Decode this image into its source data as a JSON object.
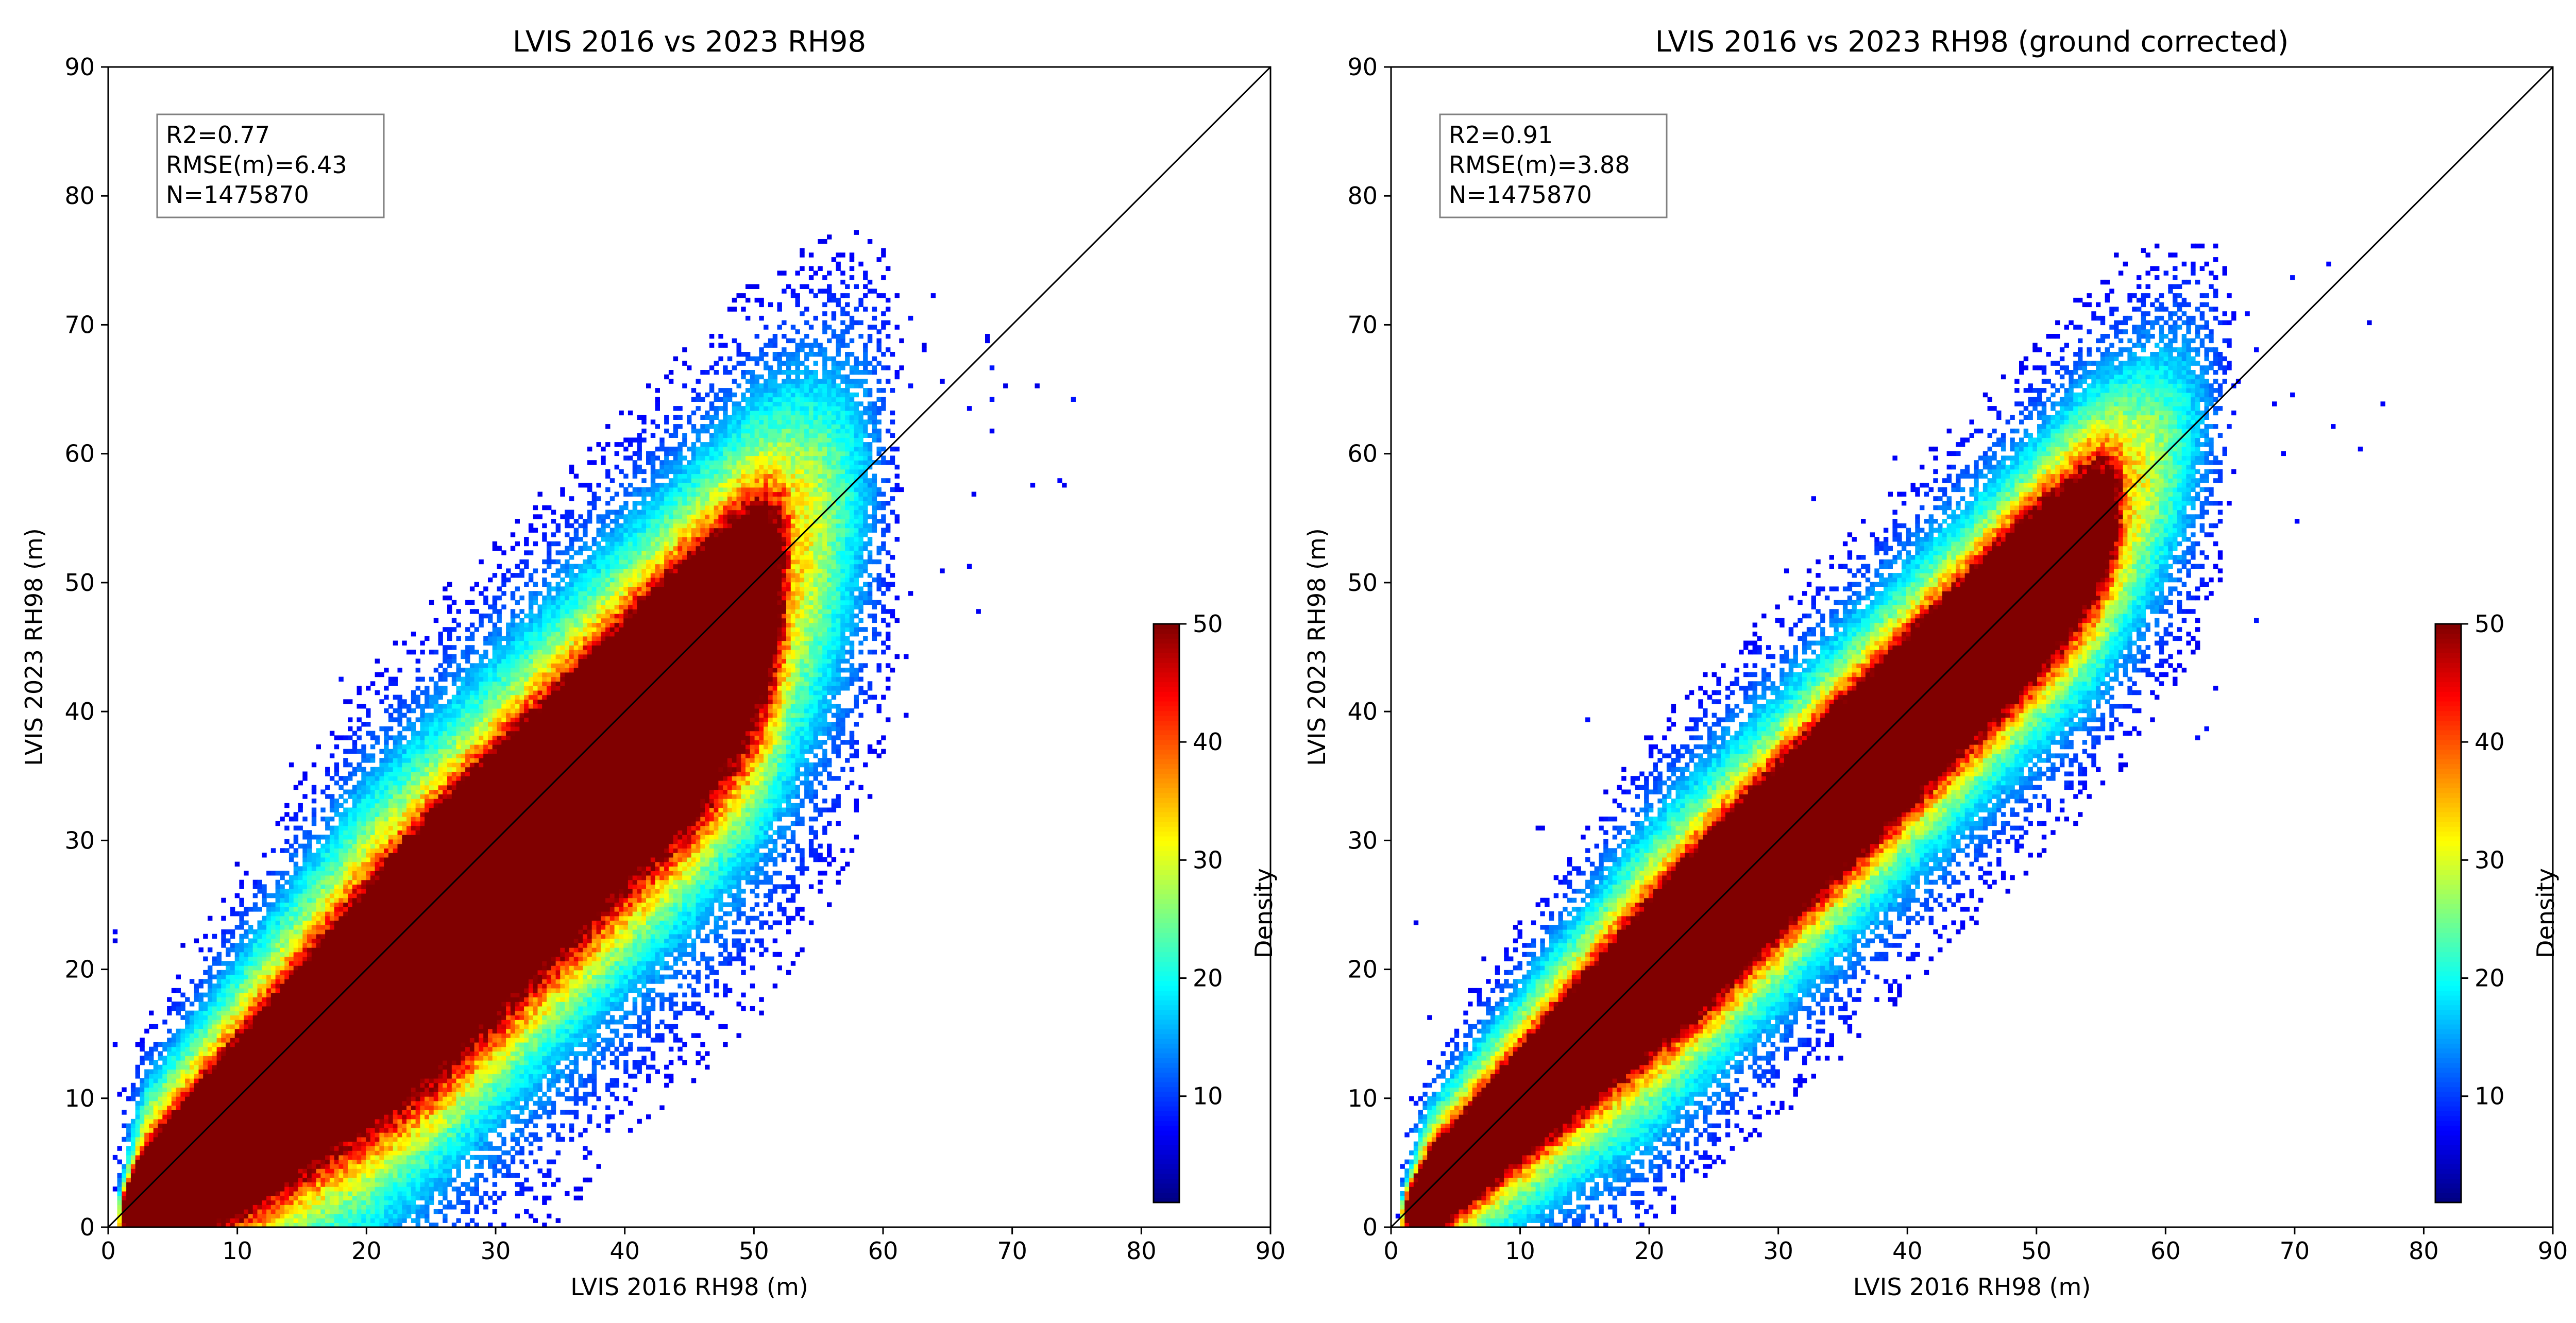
{
  "chart_data": [
    {
      "type": "heatmap",
      "title": "LVIS 2016 vs 2023 RH98",
      "xlabel": "LVIS 2016 RH98 (m)",
      "ylabel": "LVIS 2023 RH98 (m)",
      "xlim": [
        0,
        90
      ],
      "ylim": [
        0,
        90
      ],
      "xticks": [
        0,
        10,
        20,
        30,
        40,
        50,
        60,
        70,
        80,
        90
      ],
      "yticks": [
        0,
        10,
        20,
        30,
        40,
        50,
        60,
        70,
        80,
        90
      ],
      "xtick_labels": [
        "0",
        "10",
        "20",
        "30",
        "40",
        "50",
        "60",
        "70",
        "80",
        "90"
      ],
      "ytick_labels": [
        "0",
        "10",
        "20",
        "30",
        "40",
        "50",
        "60",
        "70",
        "80",
        "90"
      ],
      "reference_line": "1:1",
      "stats": {
        "r2": "R2=0.77",
        "rmse": "RMSE(m)=6.43",
        "n": "N=1475870"
      },
      "colorbar": {
        "label": "Density",
        "min": 1,
        "max": 50,
        "ticks": [
          10,
          20,
          30,
          40,
          50
        ],
        "tick_labels": [
          "10",
          "20",
          "30",
          "40",
          "50"
        ],
        "colormap": "jet"
      },
      "distribution": {
        "description_units": "data units (m)",
        "core": {
          "ridge_x_max": 53,
          "upper_spread": 2.6,
          "lower_spread": 5.5
        },
        "halo": {
          "upper_spread": 7.5,
          "lower_spread": 11,
          "x_max": 62
        },
        "scattered_outlier_extent": 75
      }
    },
    {
      "type": "heatmap",
      "title": "LVIS 2016 vs 2023 RH98 (ground corrected)",
      "xlabel": "LVIS 2016 RH98 (m)",
      "ylabel": "LVIS 2023 RH98 (m)",
      "xlim": [
        0,
        90
      ],
      "ylim": [
        0,
        90
      ],
      "xticks": [
        0,
        10,
        20,
        30,
        40,
        50,
        60,
        70,
        80,
        90
      ],
      "yticks": [
        0,
        10,
        20,
        30,
        40,
        50,
        60,
        70,
        80,
        90
      ],
      "xtick_labels": [
        "0",
        "10",
        "20",
        "30",
        "40",
        "50",
        "60",
        "70",
        "80",
        "90"
      ],
      "ytick_labels": [
        "0",
        "10",
        "20",
        "30",
        "40",
        "50",
        "60",
        "70",
        "80",
        "90"
      ],
      "reference_line": "1:1",
      "stats": {
        "r2": "R2=0.91",
        "rmse": "RMSE(m)=3.88",
        "n": "N=1475870"
      },
      "colorbar": {
        "label": "Density",
        "min": 1,
        "max": 50,
        "ticks": [
          10,
          20,
          30,
          40,
          50
        ],
        "tick_labels": [
          "10",
          "20",
          "30",
          "40",
          "50"
        ],
        "colormap": "jet"
      },
      "distribution": {
        "description_units": "data units (m)",
        "core": {
          "ridge_x_max": 57,
          "upper_spread": 2.2,
          "lower_spread": 2.8
        },
        "halo": {
          "upper_spread": 6,
          "lower_spread": 7,
          "x_max": 66
        },
        "scattered_outlier_extent": 77
      }
    }
  ]
}
